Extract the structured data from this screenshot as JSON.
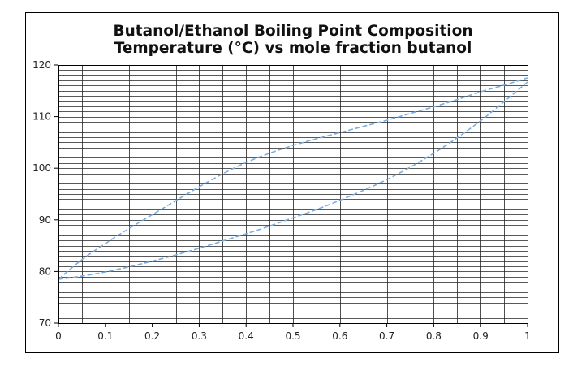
{
  "chart_data": {
    "type": "line",
    "title": [
      "Butanol/Ethanol Boiling Point Composition",
      "Temperature (°C) vs mole fraction butanol"
    ],
    "xlabel": "",
    "ylabel": "",
    "xlim": [
      0,
      1
    ],
    "ylim": [
      70,
      120
    ],
    "xticks": [
      0,
      0.1,
      0.2,
      0.3,
      0.4,
      0.5,
      0.6,
      0.7,
      0.8,
      0.9,
      1
    ],
    "xtick_labels": [
      "0",
      "0.1",
      "0.2",
      "0.3",
      "0.4",
      "0.5",
      "0.6",
      "0.7",
      "0.8",
      "0.9",
      "1"
    ],
    "yticks": [
      70,
      80,
      90,
      100,
      110,
      120
    ],
    "ytick_labels": [
      "70",
      "80",
      "90",
      "100",
      "110",
      "120"
    ],
    "grid": true,
    "vertical_grid_step": 0.05,
    "horizontal_grid_step": 1,
    "line_style": "dashed",
    "line_color": "#7aaee0",
    "series": [
      {
        "x": [
          0,
          0.05,
          0.1,
          0.15,
          0.2,
          0.25,
          0.3,
          0.35,
          0.4,
          0.45,
          0.5,
          0.55,
          0.6,
          0.65,
          0.7,
          0.75,
          0.8,
          0.85,
          0.9,
          0.95,
          1
        ],
        "values": [
          78.5,
          82.3,
          85.4,
          88.3,
          91.0,
          93.7,
          96.4,
          98.9,
          101.1,
          102.9,
          104.4,
          105.7,
          106.9,
          108.1,
          109.3,
          110.6,
          111.9,
          113.3,
          114.8,
          116.1,
          117.5
        ]
      },
      {
        "x": [
          0,
          0.05,
          0.1,
          0.15,
          0.2,
          0.25,
          0.3,
          0.35,
          0.4,
          0.45,
          0.5,
          0.55,
          0.6,
          0.65,
          0.7,
          0.75,
          0.8,
          0.85,
          0.9,
          0.95,
          1
        ],
        "values": [
          78.5,
          79.1,
          79.9,
          80.9,
          82.0,
          83.2,
          84.5,
          85.9,
          87.3,
          88.8,
          90.4,
          92.0,
          93.8,
          95.7,
          97.8,
          100.2,
          102.9,
          105.9,
          109.2,
          112.9,
          116.7
        ]
      }
    ]
  }
}
